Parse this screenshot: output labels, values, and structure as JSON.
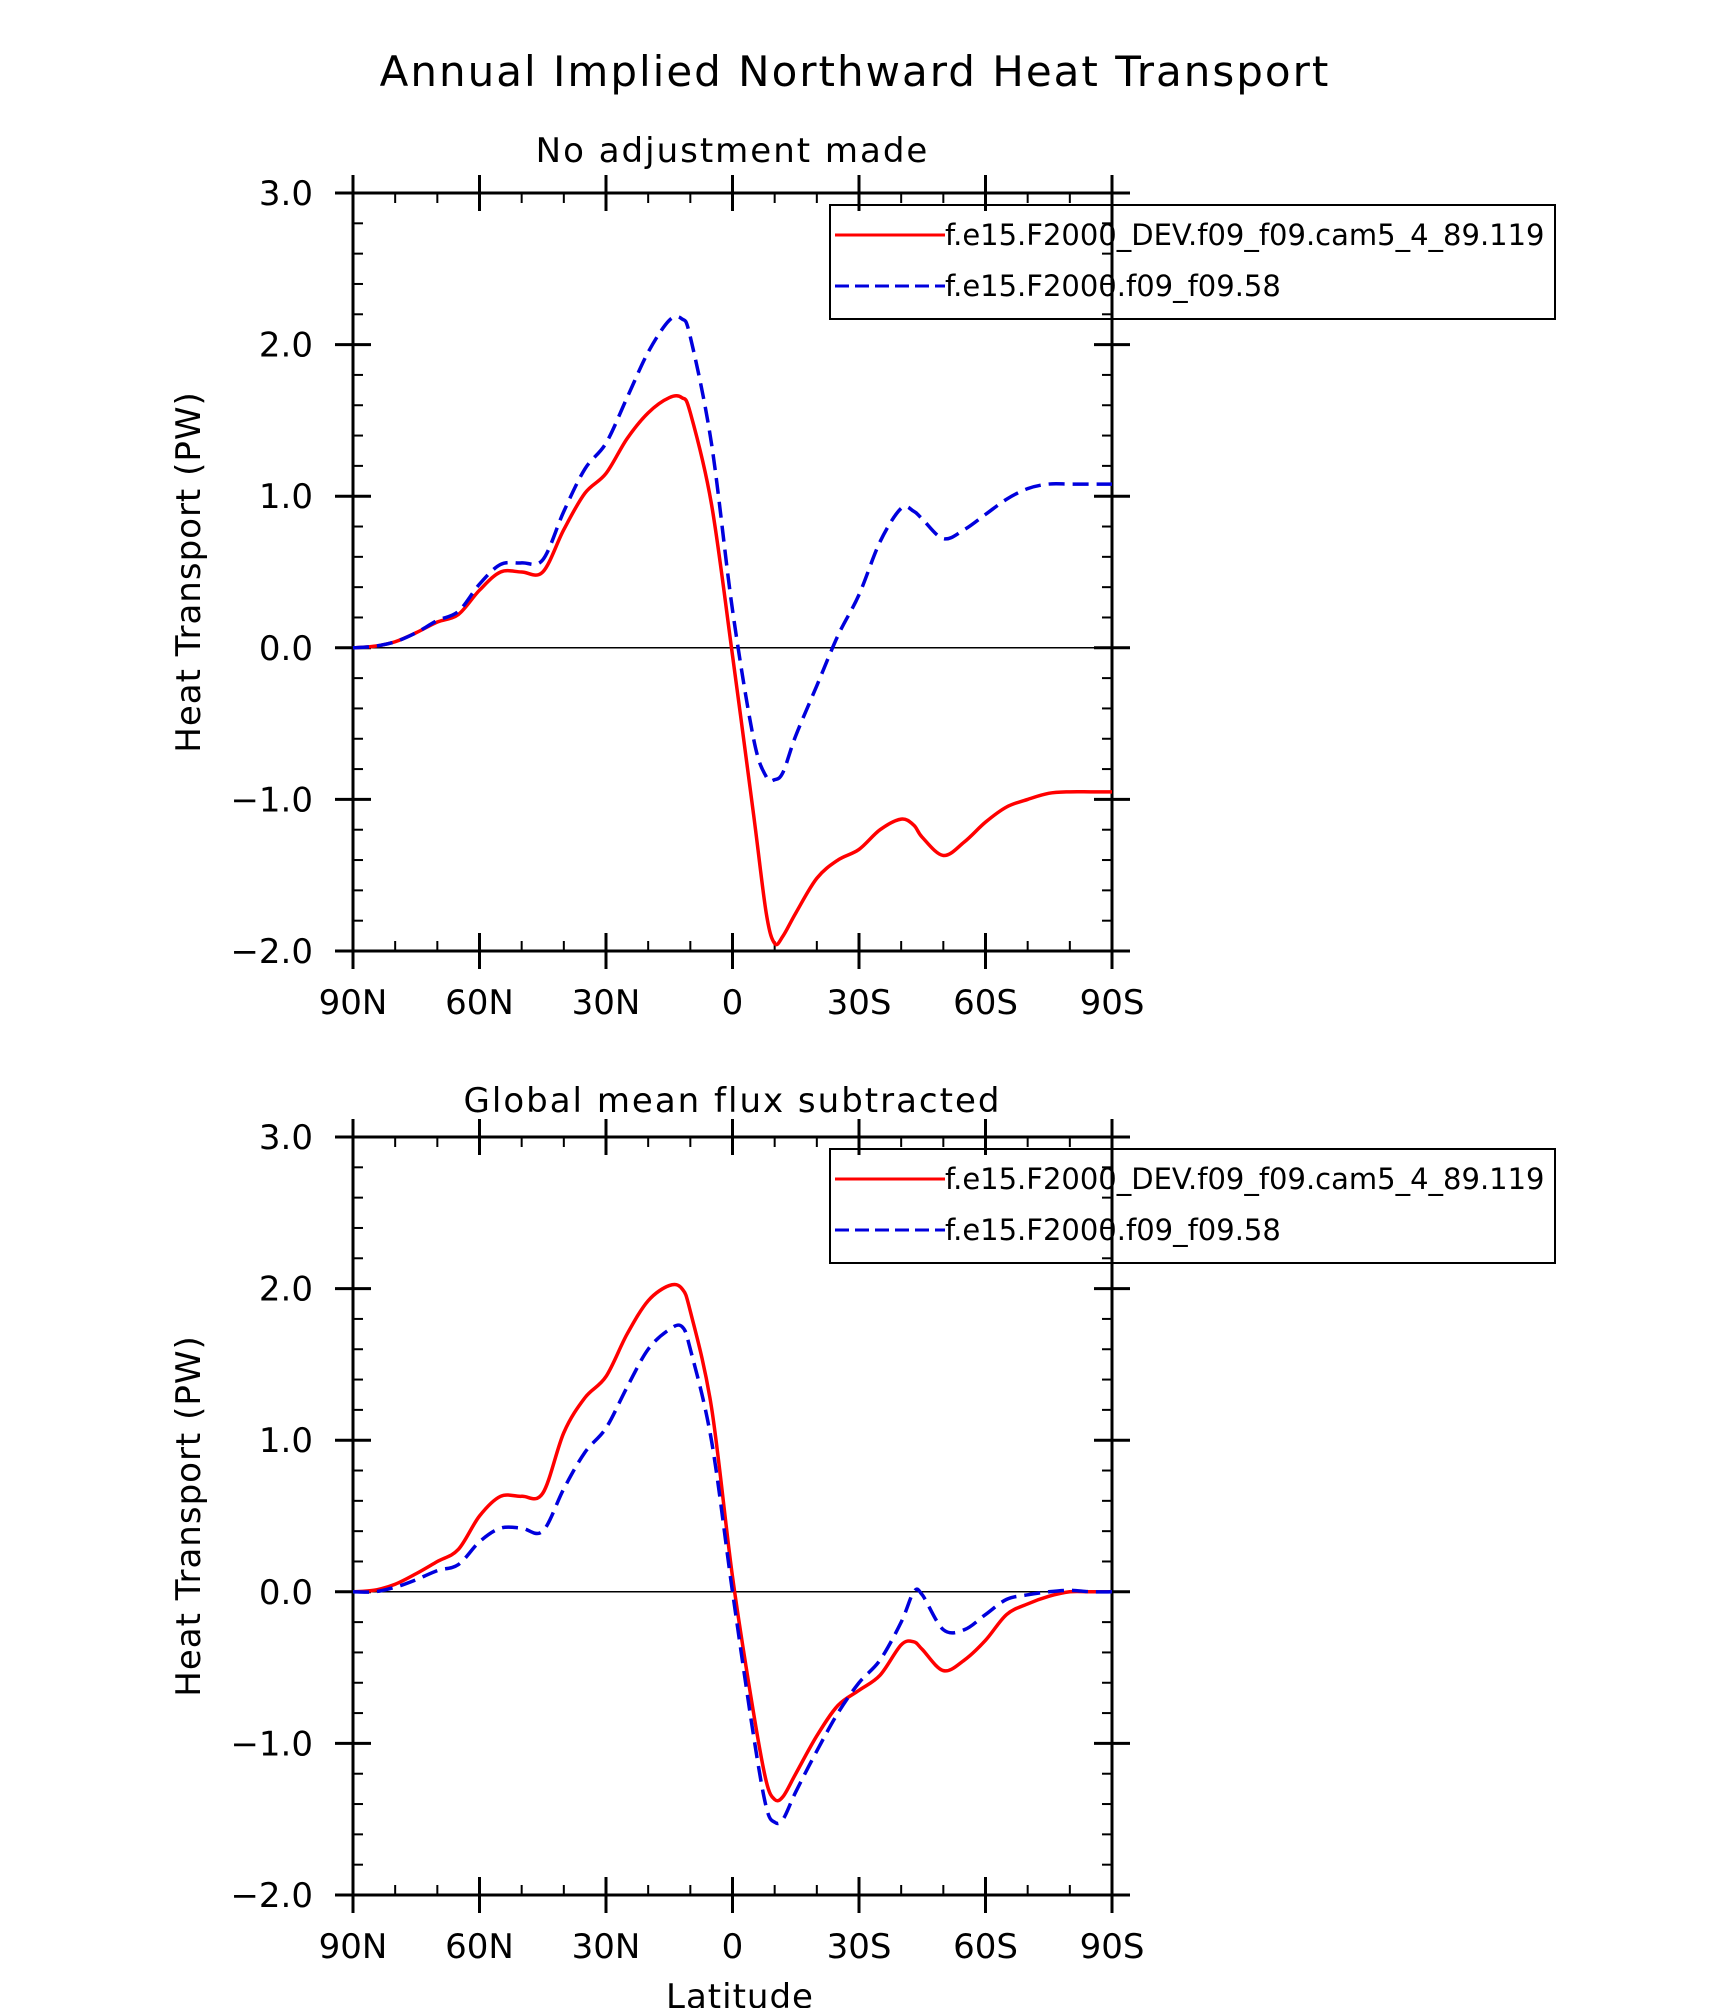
{
  "figure": {
    "title": "Annual Implied Northward Heat Transport",
    "xlabel": "Latitude"
  },
  "colors": {
    "series_1": "#ff0000",
    "series_2": "#0000dd",
    "axis": "#000000"
  },
  "chart_data": [
    {
      "type": "line",
      "title": "No adjustment made",
      "xlabel": "",
      "ylabel": "Heat Transport (PW)",
      "xlim": [
        -90,
        90
      ],
      "ylim": [
        -2.0,
        3.0
      ],
      "x_ticks": [
        -90,
        -60,
        -30,
        0,
        30,
        60,
        90
      ],
      "x_tick_labels": [
        "90N",
        "60N",
        "30N",
        "0",
        "30S",
        "60S",
        "90S"
      ],
      "y_ticks": [
        -2.0,
        -1.0,
        0.0,
        1.0,
        2.0,
        3.0
      ],
      "y_tick_labels": [
        "−2.0",
        "−1.0",
        "0.0",
        "1.0",
        "2.0",
        "3.0"
      ],
      "zero_line": true,
      "legend": {
        "position": "top-right"
      },
      "series": [
        {
          "name": "f.e15.F2000_DEV.f09_f09.cam5_4_89.119",
          "style": "solid",
          "color": "#ff0000",
          "x": [
            -90,
            -85,
            -80,
            -75,
            -70,
            -65,
            -60,
            -55,
            -50,
            -45,
            -40,
            -35,
            -30,
            -25,
            -20,
            -15,
            -12,
            -10,
            -5,
            0,
            5,
            8,
            10,
            12,
            15,
            20,
            25,
            30,
            35,
            40,
            43,
            45,
            50,
            55,
            60,
            65,
            70,
            75,
            80,
            85,
            90
          ],
          "y": [
            0.0,
            0.01,
            0.04,
            0.1,
            0.17,
            0.22,
            0.38,
            0.5,
            0.5,
            0.5,
            0.78,
            1.02,
            1.15,
            1.38,
            1.55,
            1.65,
            1.65,
            1.55,
            0.95,
            -0.05,
            -1.1,
            -1.75,
            -1.95,
            -1.9,
            -1.75,
            -1.52,
            -1.4,
            -1.33,
            -1.2,
            -1.13,
            -1.17,
            -1.25,
            -1.37,
            -1.28,
            -1.15,
            -1.05,
            -1.0,
            -0.96,
            -0.95,
            -0.95,
            -0.95
          ]
        },
        {
          "name": "f.e15.F2000.f09_f09.58",
          "style": "dashed",
          "color": "#0000dd",
          "x": [
            -90,
            -85,
            -80,
            -75,
            -70,
            -65,
            -60,
            -55,
            -50,
            -45,
            -40,
            -35,
            -30,
            -25,
            -20,
            -15,
            -12,
            -10,
            -5,
            0,
            5,
            8,
            10,
            12,
            15,
            20,
            25,
            30,
            35,
            40,
            43,
            45,
            50,
            55,
            60,
            65,
            70,
            75,
            80,
            85,
            90
          ],
          "y": [
            0.0,
            0.01,
            0.04,
            0.1,
            0.18,
            0.24,
            0.42,
            0.55,
            0.56,
            0.58,
            0.9,
            1.18,
            1.35,
            1.65,
            1.95,
            2.16,
            2.17,
            2.05,
            1.35,
            0.25,
            -0.6,
            -0.85,
            -0.87,
            -0.82,
            -0.58,
            -0.25,
            0.08,
            0.35,
            0.7,
            0.92,
            0.9,
            0.85,
            0.72,
            0.78,
            0.88,
            0.98,
            1.05,
            1.08,
            1.08,
            1.08,
            1.08
          ]
        }
      ]
    },
    {
      "type": "line",
      "title": "Global mean flux subtracted",
      "xlabel": "Latitude",
      "ylabel": "Heat Transport (PW)",
      "xlim": [
        -90,
        90
      ],
      "ylim": [
        -2.0,
        3.0
      ],
      "x_ticks": [
        -90,
        -60,
        -30,
        0,
        30,
        60,
        90
      ],
      "x_tick_labels": [
        "90N",
        "60N",
        "30N",
        "0",
        "30S",
        "60S",
        "90S"
      ],
      "y_ticks": [
        -2.0,
        -1.0,
        0.0,
        1.0,
        2.0,
        3.0
      ],
      "y_tick_labels": [
        "−2.0",
        "−1.0",
        "0.0",
        "1.0",
        "2.0",
        "3.0"
      ],
      "zero_line": true,
      "legend": {
        "position": "top-right"
      },
      "series": [
        {
          "name": "f.e15.F2000_DEV.f09_f09.cam5_4_89.119",
          "style": "solid",
          "color": "#ff0000",
          "x": [
            -90,
            -85,
            -80,
            -75,
            -70,
            -65,
            -60,
            -55,
            -50,
            -45,
            -40,
            -35,
            -30,
            -25,
            -20,
            -15,
            -12,
            -10,
            -5,
            0,
            5,
            8,
            10,
            12,
            15,
            20,
            25,
            30,
            35,
            40,
            43,
            45,
            50,
            55,
            60,
            65,
            70,
            75,
            80,
            85,
            90
          ],
          "y": [
            0.0,
            0.01,
            0.05,
            0.12,
            0.2,
            0.28,
            0.5,
            0.63,
            0.63,
            0.65,
            1.05,
            1.28,
            1.42,
            1.7,
            1.92,
            2.02,
            2.0,
            1.85,
            1.22,
            0.1,
            -0.8,
            -1.25,
            -1.37,
            -1.35,
            -1.2,
            -0.95,
            -0.75,
            -0.65,
            -0.55,
            -0.35,
            -0.33,
            -0.38,
            -0.52,
            -0.45,
            -0.32,
            -0.15,
            -0.08,
            -0.03,
            0.0,
            0.0,
            0.0
          ]
        },
        {
          "name": "f.e15.F2000.f09_f09.58",
          "style": "dashed",
          "color": "#0000dd",
          "x": [
            -90,
            -85,
            -80,
            -75,
            -70,
            -65,
            -60,
            -55,
            -50,
            -45,
            -40,
            -35,
            -30,
            -25,
            -20,
            -15,
            -12,
            -10,
            -5,
            0,
            5,
            8,
            10,
            12,
            15,
            20,
            25,
            30,
            35,
            40,
            43,
            45,
            50,
            55,
            60,
            65,
            70,
            75,
            80,
            85,
            90
          ],
          "y": [
            0.0,
            0.0,
            0.03,
            0.08,
            0.14,
            0.18,
            0.33,
            0.42,
            0.42,
            0.4,
            0.68,
            0.92,
            1.08,
            1.35,
            1.6,
            1.73,
            1.75,
            1.6,
            1.0,
            0.0,
            -0.95,
            -1.42,
            -1.52,
            -1.5,
            -1.32,
            -1.05,
            -0.8,
            -0.6,
            -0.45,
            -0.2,
            0.0,
            -0.02,
            -0.25,
            -0.25,
            -0.15,
            -0.05,
            -0.02,
            0.0,
            0.01,
            0.0,
            0.0
          ]
        }
      ]
    }
  ]
}
